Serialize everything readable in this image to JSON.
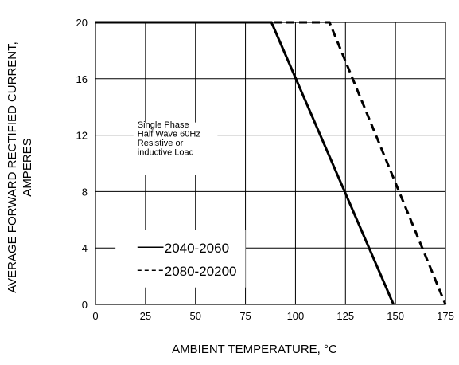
{
  "chart_data": {
    "type": "line",
    "xlabel": "AMBIENT TEMPERATURE, °C",
    "ylabel_lines": [
      "AVERAGE FORWARD RECTIFIED CURRENT,",
      "AMPERES"
    ],
    "xlim": [
      0,
      175
    ],
    "ylim": [
      0,
      20
    ],
    "x_ticks": [
      0,
      25,
      50,
      75,
      100,
      125,
      150,
      175
    ],
    "x_tick_labels": [
      "0",
      "25",
      "50",
      "75",
      "100",
      "125",
      "150",
      "175"
    ],
    "y_ticks": [
      0,
      4,
      8,
      12,
      16,
      20
    ],
    "y_tick_labels": [
      "0",
      "4",
      "8",
      "12",
      "16",
      "20"
    ],
    "grid": true,
    "annotation_lines": [
      "Single Phase",
      "Half Wave 60Hz",
      "Resistive or",
      "inductive Load"
    ],
    "series": [
      {
        "name": "2040-2060",
        "style": "solid",
        "color": "#000000",
        "points": [
          [
            0,
            20
          ],
          [
            88,
            20
          ],
          [
            149,
            0
          ]
        ]
      },
      {
        "name": "2080-20200",
        "style": "dashed",
        "color": "#000000",
        "points": [
          [
            0,
            20
          ],
          [
            117,
            20
          ],
          [
            175,
            0
          ]
        ]
      }
    ]
  }
}
